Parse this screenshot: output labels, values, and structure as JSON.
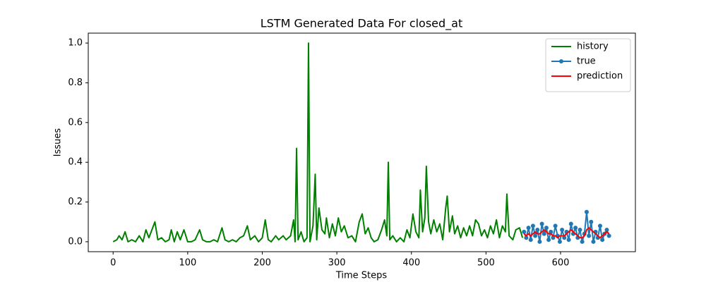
{
  "chart_data": {
    "type": "line",
    "title": "LSTM Generated Data For closed_at",
    "xlabel": "Time Steps",
    "ylabel": "Issues",
    "xlim": [
      -33.35,
      700.35
    ],
    "ylim": [
      -0.05,
      1.05
    ],
    "xticks": [
      0,
      100,
      200,
      300,
      400,
      500,
      600
    ],
    "yticks": [
      {
        "value": 0,
        "label": "0.0"
      },
      {
        "value": 0.2,
        "label": "0.2"
      },
      {
        "value": 0.4,
        "label": "0.4"
      },
      {
        "value": 0.6,
        "label": "0.6"
      },
      {
        "value": 0.8,
        "label": "0.8"
      },
      {
        "value": 1.0,
        "label": "1.0"
      }
    ],
    "legend": "upper right",
    "series": [
      {
        "name": "history",
        "color": "#008000",
        "marker": false,
        "x": [
          0,
          5,
          8,
          12,
          16,
          20,
          25,
          30,
          35,
          40,
          44,
          48,
          52,
          56,
          60,
          65,
          70,
          75,
          78,
          82,
          86,
          90,
          95,
          100,
          105,
          110,
          116,
          120,
          125,
          130,
          135,
          140,
          146,
          150,
          155,
          160,
          165,
          170,
          175,
          180,
          184,
          190,
          195,
          200,
          204,
          208,
          212,
          218,
          222,
          228,
          232,
          238,
          242,
          244,
          246,
          248,
          252,
          256,
          260,
          262,
          264,
          268,
          271,
          273,
          276,
          280,
          284,
          286,
          290,
          294,
          298,
          302,
          306,
          310,
          315,
          320,
          325,
          330,
          334,
          338,
          342,
          346,
          350,
          355,
          360,
          364,
          367,
          369,
          371,
          375,
          380,
          385,
          390,
          394,
          398,
          402,
          406,
          410,
          412,
          415,
          418,
          420,
          423,
          426,
          430,
          434,
          438,
          442,
          446,
          448,
          451,
          455,
          458,
          462,
          466,
          470,
          474,
          478,
          482,
          486,
          490,
          494,
          498,
          502,
          506,
          510,
          514,
          518,
          522,
          526,
          528,
          531,
          536,
          540,
          545,
          549
        ],
        "values": [
          0,
          0.01,
          0.03,
          0.01,
          0.05,
          0,
          0.01,
          0,
          0.03,
          0,
          0.06,
          0.02,
          0.06,
          0.1,
          0.01,
          0.02,
          0,
          0.01,
          0.06,
          0,
          0.05,
          0.01,
          0.06,
          0,
          0,
          0.01,
          0.06,
          0.01,
          0,
          0,
          0.01,
          0,
          0.07,
          0.01,
          0,
          0.01,
          0,
          0.02,
          0.03,
          0.08,
          0.01,
          0.03,
          0,
          0.02,
          0.11,
          0.01,
          0,
          0.03,
          0.01,
          0.03,
          0.01,
          0.03,
          0.11,
          0,
          0.47,
          0.01,
          0.05,
          0,
          0.02,
          1.0,
          0,
          0.08,
          0.34,
          0.01,
          0.17,
          0.06,
          0.04,
          0.12,
          0.02,
          0.09,
          0.03,
          0.12,
          0.05,
          0.08,
          0.02,
          0.03,
          0,
          0.1,
          0.14,
          0.04,
          0.07,
          0.02,
          0,
          0.01,
          0.06,
          0.11,
          0.03,
          0.4,
          0.01,
          0.03,
          0,
          0.02,
          0,
          0.06,
          0.02,
          0.14,
          0.05,
          0.02,
          0.26,
          0.05,
          0.12,
          0.38,
          0.1,
          0.04,
          0.11,
          0.05,
          0.09,
          0.01,
          0.17,
          0.23,
          0.05,
          0.13,
          0.04,
          0.08,
          0.02,
          0.07,
          0.03,
          0.08,
          0.03,
          0.11,
          0.09,
          0.03,
          0.06,
          0.02,
          0.08,
          0.04,
          0.11,
          0.02,
          0.08,
          0.05,
          0.24,
          0.03,
          0.01,
          0.06,
          0.07,
          0.02
        ]
      },
      {
        "name": "true",
        "color": "#1f77b4",
        "marker": true,
        "x": [
          551,
          554,
          557,
          560,
          563,
          566,
          569,
          572,
          575,
          578,
          581,
          584,
          587,
          590,
          593,
          596,
          599,
          602,
          605,
          608,
          611,
          614,
          617,
          620,
          623,
          626,
          629,
          632,
          635,
          638,
          641,
          644,
          647,
          650,
          653,
          656,
          659,
          662,
          665
        ],
        "values": [
          0.05,
          0.02,
          0.07,
          0.01,
          0.08,
          0.03,
          0.06,
          0.0,
          0.09,
          0.04,
          0.07,
          0.01,
          0.05,
          0.02,
          0.08,
          0.03,
          0.0,
          0.06,
          0.02,
          0.05,
          0.01,
          0.09,
          0.04,
          0.07,
          0.02,
          0.06,
          0.0,
          0.04,
          0.15,
          0.03,
          0.1,
          0.0,
          0.05,
          0.02,
          0.08,
          0.01,
          0.04,
          0.06,
          0.03
        ]
      },
      {
        "name": "prediction",
        "color": "#ff0000",
        "marker": false,
        "x": [
          551,
          554,
          557,
          560,
          563,
          566,
          569,
          572,
          575,
          578,
          581,
          584,
          587,
          590,
          593,
          596,
          599,
          602,
          605,
          608,
          611,
          614,
          617,
          620,
          623,
          626,
          629,
          632,
          635,
          638,
          641,
          644,
          647,
          650,
          653,
          656,
          659,
          662,
          665
        ],
        "values": [
          0.04,
          0.03,
          0.04,
          0.03,
          0.04,
          0.05,
          0.04,
          0.04,
          0.05,
          0.06,
          0.05,
          0.04,
          0.04,
          0.03,
          0.03,
          0.02,
          0.03,
          0.03,
          0.03,
          0.04,
          0.05,
          0.06,
          0.05,
          0.04,
          0.03,
          0.02,
          0.02,
          0.03,
          0.06,
          0.07,
          0.06,
          0.05,
          0.04,
          0.03,
          0.02,
          0.03,
          0.04,
          0.05,
          0.04
        ]
      }
    ]
  }
}
